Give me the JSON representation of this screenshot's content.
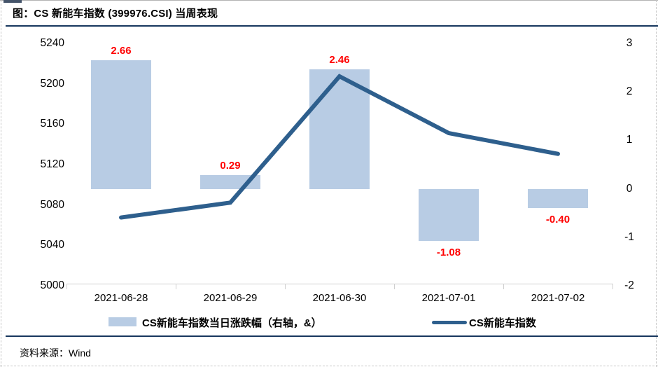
{
  "header": {
    "title": "图：CS 新能车指数 (399976.CSI) 当周表现"
  },
  "footer": {
    "source_label": "资料来源：",
    "source_value": "Wind"
  },
  "colors": {
    "bar": "#B8CCE4",
    "line": "#2E5F8D",
    "value_label": "#FF0000",
    "rule": "#17375E",
    "axis": "#CFCFCF"
  },
  "legend": {
    "bar_swatch": "bar-swatch",
    "line_swatch": "line-swatch"
  },
  "chart_data": {
    "type": "bar+line",
    "categories": [
      "2021-06-28",
      "2021-06-29",
      "2021-06-30",
      "2021-07-01",
      "2021-07-02"
    ],
    "series": [
      {
        "name": "CS新能车指数当日涨跌幅（右轴，&）",
        "type": "bar",
        "axis": "right",
        "values": [
          2.66,
          0.29,
          2.46,
          -1.08,
          -0.4
        ],
        "value_labels": [
          "2.66",
          "0.29",
          "2.46",
          "-1.08",
          "-0.40"
        ]
      },
      {
        "name": "CS新能车指数",
        "type": "line",
        "axis": "left",
        "values": [
          5067.6,
          5082.3,
          5207.4,
          5151.2,
          5130.6
        ]
      }
    ],
    "left_axis": {
      "min": 5000,
      "max": 5240,
      "ticks": [
        5240,
        5200,
        5160,
        5120,
        5080,
        5040,
        5000
      ]
    },
    "right_axis": {
      "min": -2,
      "max": 3,
      "ticks": [
        3,
        2,
        1,
        0,
        -1,
        -2
      ]
    },
    "legend_position": "bottom",
    "grid": false
  }
}
